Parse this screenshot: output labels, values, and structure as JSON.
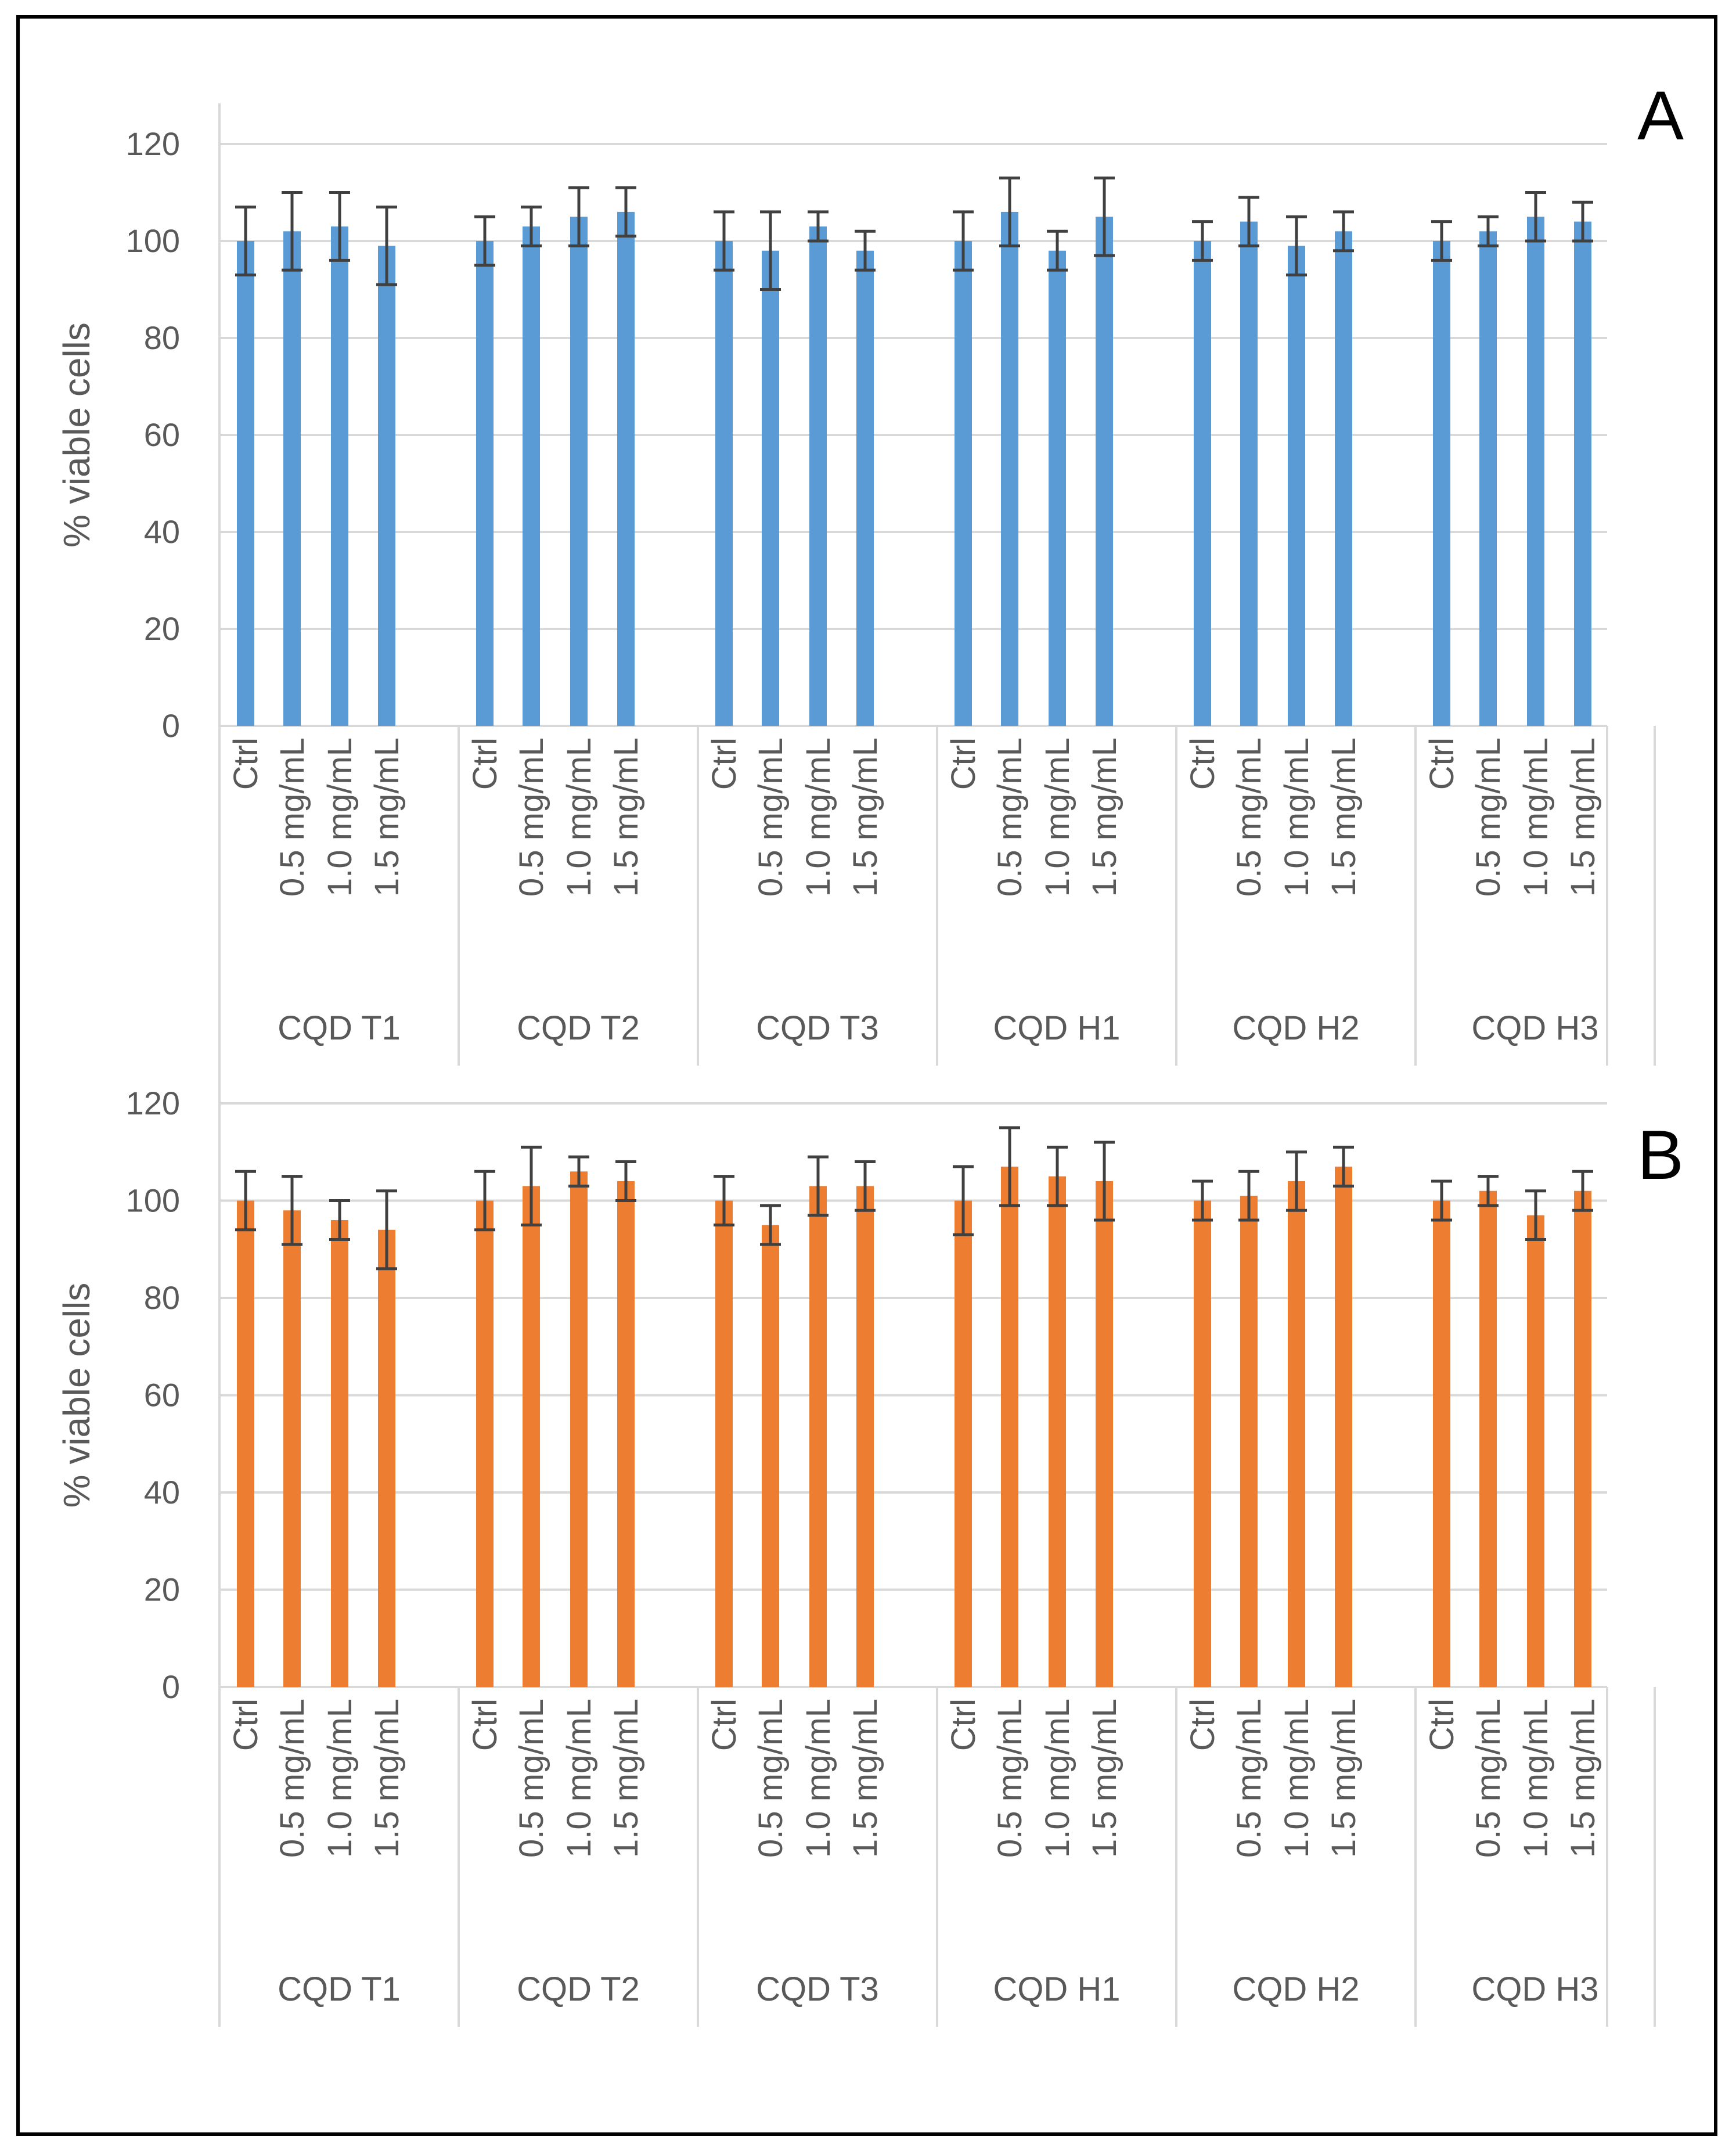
{
  "figure": {
    "colors": {
      "frame": "#000000",
      "grid": "#d9d9d9",
      "axis": "#d9d9d9",
      "text": "#595959",
      "error_bar": "#404040"
    }
  },
  "chart_data": [
    {
      "type": "bar",
      "panel_label": "A",
      "ylabel": "% viable cells",
      "ylim": [
        0,
        120
      ],
      "yticks": [
        0,
        20,
        40,
        60,
        80,
        100,
        120
      ],
      "grid": true,
      "color": "#5b9bd5",
      "categories": [
        "Ctrl",
        "0.5 mg/mL",
        "1.0 mg/mL",
        "1.5 mg/mL"
      ],
      "groups": [
        {
          "name": "CQD T1",
          "values": [
            100,
            102,
            103,
            99
          ],
          "errors": [
            7,
            8,
            7,
            8
          ]
        },
        {
          "name": "CQD T2",
          "values": [
            100,
            103,
            105,
            106
          ],
          "errors": [
            5,
            4,
            6,
            5
          ]
        },
        {
          "name": "CQD T3",
          "values": [
            100,
            98,
            103,
            98
          ],
          "errors": [
            6,
            8,
            3,
            4
          ]
        },
        {
          "name": "CQD H1",
          "values": [
            100,
            106,
            98,
            105
          ],
          "errors": [
            6,
            7,
            4,
            8
          ]
        },
        {
          "name": "CQD H2",
          "values": [
            100,
            104,
            99,
            102
          ],
          "errors": [
            4,
            5,
            6,
            4
          ]
        },
        {
          "name": "CQD H3",
          "values": [
            100,
            102,
            105,
            104
          ],
          "errors": [
            4,
            3,
            5,
            4
          ]
        }
      ]
    },
    {
      "type": "bar",
      "panel_label": "B",
      "ylabel": "% viable cells",
      "ylim": [
        0,
        120
      ],
      "yticks": [
        0,
        20,
        40,
        60,
        80,
        100,
        120
      ],
      "grid": true,
      "color": "#ed7d31",
      "categories": [
        "Ctrl",
        "0.5 mg/mL",
        "1.0 mg/mL",
        "1.5 mg/mL"
      ],
      "groups": [
        {
          "name": "CQD T1",
          "values": [
            100,
            98,
            96,
            94
          ],
          "errors": [
            6,
            7,
            4,
            8
          ]
        },
        {
          "name": "CQD T2",
          "values": [
            100,
            103,
            106,
            104
          ],
          "errors": [
            6,
            8,
            3,
            4
          ]
        },
        {
          "name": "CQD T3",
          "values": [
            100,
            95,
            103,
            103
          ],
          "errors": [
            5,
            4,
            6,
            5
          ]
        },
        {
          "name": "CQD H1",
          "values": [
            100,
            107,
            105,
            104
          ],
          "errors": [
            7,
            8,
            6,
            8
          ]
        },
        {
          "name": "CQD H2",
          "values": [
            100,
            101,
            104,
            107
          ],
          "errors": [
            4,
            5,
            6,
            4
          ]
        },
        {
          "name": "CQD H3",
          "values": [
            100,
            102,
            97,
            102
          ],
          "errors": [
            4,
            3,
            5,
            4
          ]
        }
      ]
    }
  ]
}
